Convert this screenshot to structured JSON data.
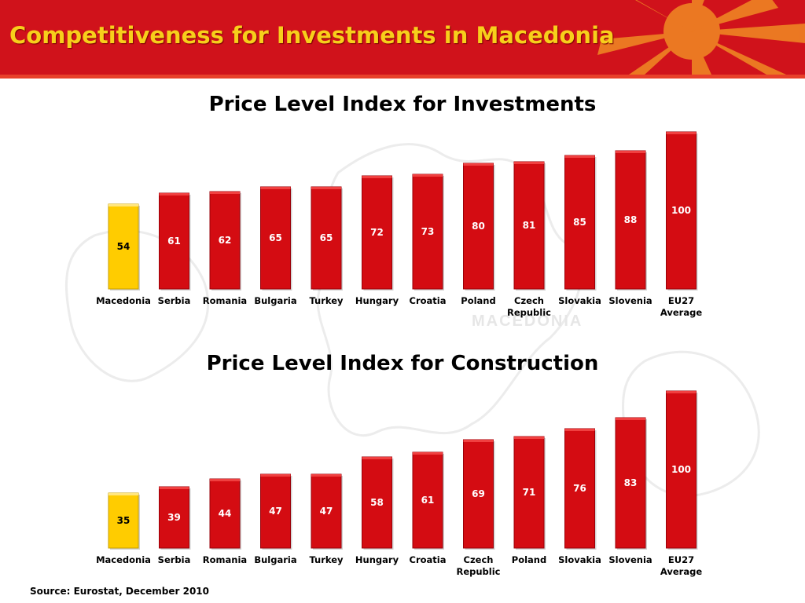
{
  "header": {
    "title": "Competitiveness for Investments in Macedonia",
    "background_color": "#d0121b",
    "title_color": "#f7cf1b"
  },
  "background_watermark": "MACEDONIA",
  "source": "Source: Eurostat, December 2010",
  "colors": {
    "highlight_bar": "#ffcc00",
    "bar": "#d40c12",
    "bar_value_text": "#ffffff"
  },
  "chart_data": [
    {
      "type": "bar",
      "title": "Price Level Index for Investments",
      "categories": [
        "Macedonia",
        "Serbia",
        "Romania",
        "Bulgaria",
        "Turkey",
        "Hungary",
        "Croatia",
        "Poland",
        "Czech Republic",
        "Slovakia",
        "Slovenia",
        "EU27 Average"
      ],
      "values": [
        54,
        61,
        62,
        65,
        65,
        72,
        73,
        80,
        81,
        85,
        88,
        100
      ],
      "highlight_index": 0,
      "ylim": [
        0,
        100
      ],
      "grid": false,
      "legend": "none"
    },
    {
      "type": "bar",
      "title": "Price Level Index for Construction",
      "categories": [
        "Macedonia",
        "Serbia",
        "Romania",
        "Bulgaria",
        "Turkey",
        "Hungary",
        "Croatia",
        "Czech Republic",
        "Poland",
        "Slovakia",
        "Slovenia",
        "EU27 Average"
      ],
      "values": [
        35,
        39,
        44,
        47,
        47,
        58,
        61,
        69,
        71,
        76,
        83,
        100
      ],
      "highlight_index": 0,
      "ylim": [
        0,
        100
      ],
      "grid": false,
      "legend": "none"
    }
  ]
}
